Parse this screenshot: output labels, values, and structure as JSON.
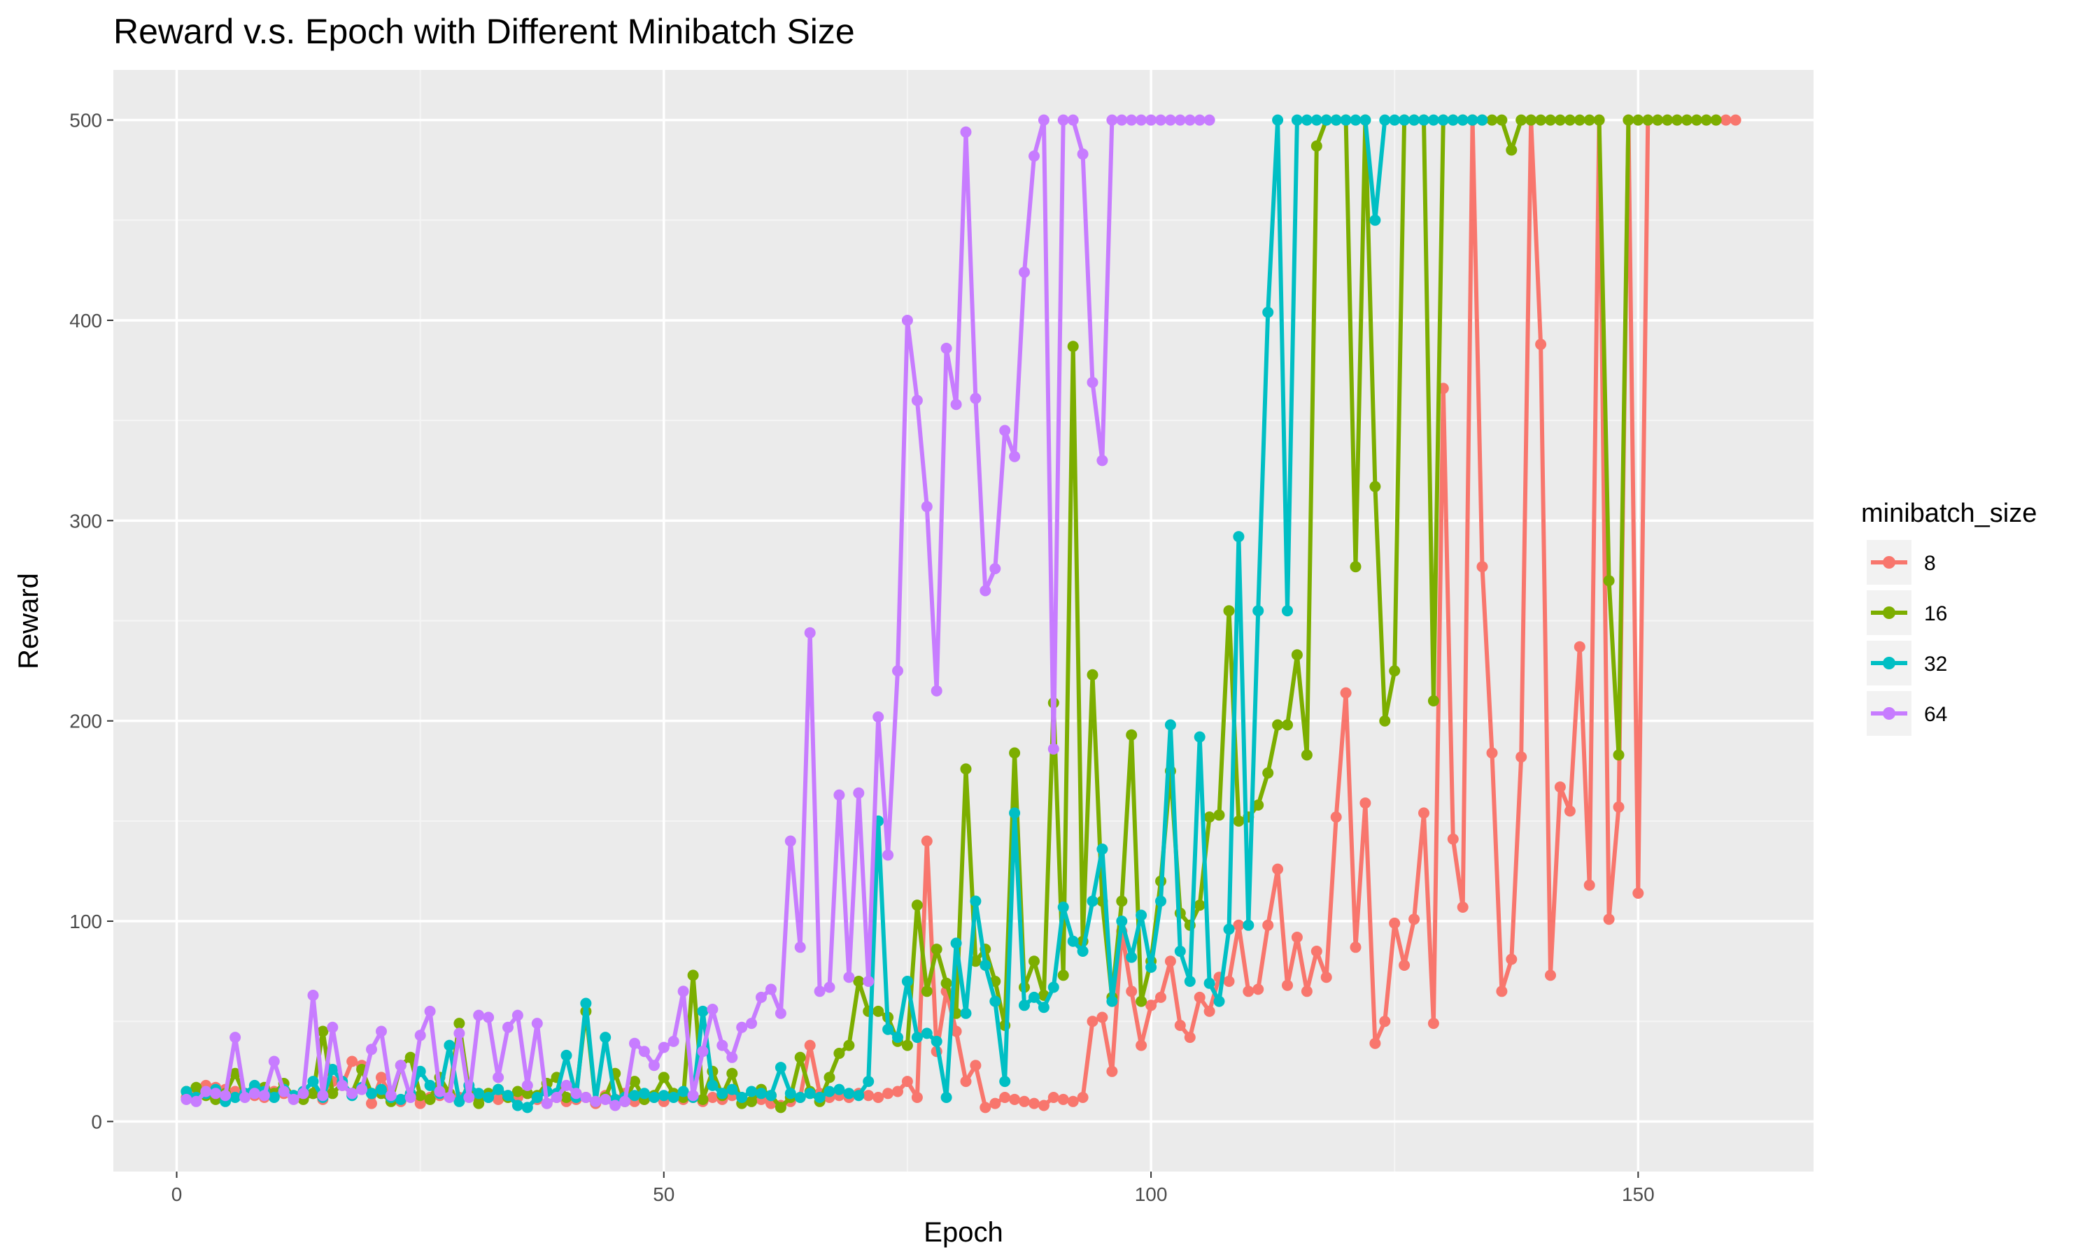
{
  "chart_data": {
    "type": "line",
    "title": "Reward v.s. Epoch with Different Minibatch Size",
    "xlabel": "Epoch",
    "ylabel": "Reward",
    "xlim": [
      -6.5,
      168
    ],
    "ylim": [
      -25,
      525
    ],
    "xticks": [
      0,
      50,
      100,
      150
    ],
    "yticks": [
      0,
      100,
      200,
      300,
      400,
      500
    ],
    "grid": true,
    "legend": {
      "title": "minibatch_size",
      "position": "right"
    },
    "series": [
      {
        "name": "8",
        "color": "#F8766D",
        "x": [
          1,
          2,
          3,
          4,
          5,
          6,
          7,
          8,
          9,
          10,
          11,
          12,
          13,
          14,
          15,
          16,
          17,
          18,
          19,
          20,
          21,
          22,
          23,
          24,
          25,
          26,
          27,
          28,
          29,
          30,
          31,
          32,
          33,
          34,
          35,
          36,
          37,
          38,
          39,
          40,
          41,
          42,
          43,
          44,
          45,
          46,
          47,
          48,
          49,
          50,
          51,
          52,
          53,
          54,
          55,
          56,
          57,
          58,
          59,
          60,
          61,
          62,
          63,
          64,
          65,
          66,
          67,
          68,
          69,
          70,
          71,
          72,
          73,
          74,
          75,
          76,
          77,
          78,
          79,
          80,
          81,
          82,
          83,
          84,
          85,
          86,
          87,
          88,
          89,
          90,
          91,
          92,
          93,
          94,
          95,
          96,
          97,
          98,
          99,
          100,
          101,
          102,
          103,
          104,
          105,
          106,
          107,
          108,
          109,
          110,
          111,
          112,
          113,
          114,
          115,
          116,
          117,
          118,
          119,
          120,
          121,
          122,
          123,
          124,
          125,
          126,
          127,
          128,
          129,
          130,
          131,
          132,
          133,
          134,
          135,
          136,
          137,
          138,
          139,
          140,
          141,
          142,
          143,
          144,
          145,
          146,
          147,
          148,
          149,
          150,
          151,
          152,
          153,
          154,
          155,
          156,
          157,
          158,
          159,
          160
        ],
        "values": [
          12,
          14,
          18,
          17,
          16,
          15,
          14,
          13,
          12,
          15,
          14,
          13,
          12,
          14,
          11,
          20,
          18,
          30,
          28,
          9,
          22,
          12,
          10,
          14,
          9,
          12,
          13,
          14,
          12,
          15,
          13,
          12,
          11,
          13,
          12,
          14,
          11,
          9,
          12,
          10,
          11,
          12,
          9,
          13,
          11,
          14,
          10,
          11,
          12,
          10,
          13,
          11,
          12,
          10,
          12,
          11,
          13,
          12,
          10,
          11,
          9,
          8,
          10,
          12,
          38,
          14,
          12,
          13,
          12,
          14,
          13,
          12,
          14,
          15,
          20,
          12,
          140,
          35,
          65,
          45,
          20,
          28,
          7,
          9,
          12,
          11,
          10,
          9,
          8,
          12,
          11,
          10,
          12,
          50,
          52,
          25,
          95,
          65,
          38,
          58,
          62,
          80,
          48,
          42,
          62,
          55,
          72,
          70,
          98,
          65,
          66,
          98,
          126,
          68,
          92,
          65,
          85,
          72,
          152,
          214,
          87,
          159,
          39,
          50,
          99,
          78,
          101,
          154,
          49,
          366,
          141,
          107,
          500,
          277,
          184,
          65,
          81,
          182,
          500,
          388,
          73,
          167,
          155,
          237,
          118,
          500,
          101,
          157,
          500,
          114,
          500,
          500,
          500,
          500,
          500,
          500,
          500,
          500,
          500,
          500
        ]
      },
      {
        "name": "16",
        "color": "#7CAE00",
        "x": [
          1,
          2,
          3,
          4,
          5,
          6,
          7,
          8,
          9,
          10,
          11,
          12,
          13,
          14,
          15,
          16,
          17,
          18,
          19,
          20,
          21,
          22,
          23,
          24,
          25,
          26,
          27,
          28,
          29,
          30,
          31,
          32,
          33,
          34,
          35,
          36,
          37,
          38,
          39,
          40,
          41,
          42,
          43,
          44,
          45,
          46,
          47,
          48,
          49,
          50,
          51,
          52,
          53,
          54,
          55,
          56,
          57,
          58,
          59,
          60,
          61,
          62,
          63,
          64,
          65,
          66,
          67,
          68,
          69,
          70,
          71,
          72,
          73,
          74,
          75,
          76,
          77,
          78,
          79,
          80,
          81,
          82,
          83,
          84,
          85,
          86,
          87,
          88,
          89,
          90,
          91,
          92,
          93,
          94,
          95,
          96,
          97,
          98,
          99,
          100,
          101,
          102,
          103,
          104,
          105,
          106,
          107,
          108,
          109,
          110,
          111,
          112,
          113,
          114,
          115,
          116,
          117,
          118,
          119,
          120,
          121,
          122,
          123,
          124,
          125,
          126,
          127,
          128,
          129,
          130,
          131,
          132,
          133,
          134,
          135,
          136,
          137,
          138,
          139,
          140,
          141,
          142,
          143,
          144,
          145,
          146,
          147,
          148,
          149,
          150,
          151,
          152,
          153,
          154,
          155,
          156,
          157,
          158
        ],
        "values": [
          15,
          17,
          13,
          11,
          14,
          24,
          13,
          15,
          17,
          14,
          19,
          12,
          11,
          14,
          45,
          14,
          19,
          14,
          26,
          14,
          14,
          10,
          28,
          32,
          13,
          11,
          22,
          14,
          49,
          15,
          9,
          14,
          16,
          12,
          15,
          14,
          13,
          19,
          22,
          12,
          14,
          55,
          10,
          12,
          24,
          10,
          20,
          11,
          13,
          22,
          14,
          12,
          73,
          11,
          25,
          13,
          24,
          9,
          10,
          16,
          13,
          7,
          12,
          32,
          15,
          10,
          22,
          34,
          38,
          70,
          55,
          55,
          52,
          40,
          38,
          108,
          65,
          86,
          69,
          54,
          176,
          80,
          86,
          70,
          48,
          184,
          67,
          80,
          63,
          209,
          73,
          387,
          90,
          223,
          110,
          62,
          110,
          193,
          60,
          80,
          120,
          175,
          104,
          98,
          108,
          152,
          153,
          255,
          150,
          152,
          158,
          174,
          198,
          198,
          233,
          183,
          487,
          500,
          500,
          500,
          277,
          500,
          317,
          200,
          225,
          500,
          500,
          500,
          210,
          500,
          500,
          500,
          500,
          500,
          500,
          500,
          485,
          500,
          500,
          500,
          500,
          500,
          500,
          500,
          500,
          500,
          270,
          183,
          500,
          500,
          500,
          500,
          500,
          500,
          500,
          500,
          500,
          500
        ]
      },
      {
        "name": "32",
        "color": "#00BFC4",
        "x": [
          1,
          2,
          3,
          4,
          5,
          6,
          7,
          8,
          9,
          10,
          11,
          12,
          13,
          14,
          15,
          16,
          17,
          18,
          19,
          20,
          21,
          22,
          23,
          24,
          25,
          26,
          27,
          28,
          29,
          30,
          31,
          32,
          33,
          34,
          35,
          36,
          37,
          38,
          39,
          40,
          41,
          42,
          43,
          44,
          45,
          46,
          47,
          48,
          49,
          50,
          51,
          52,
          53,
          54,
          55,
          56,
          57,
          58,
          59,
          60,
          61,
          62,
          63,
          64,
          65,
          66,
          67,
          68,
          69,
          70,
          71,
          72,
          73,
          74,
          75,
          76,
          77,
          78,
          79,
          80,
          81,
          82,
          83,
          84,
          85,
          86,
          87,
          88,
          89,
          90,
          91,
          92,
          93,
          94,
          95,
          96,
          97,
          98,
          99,
          100,
          101,
          102,
          103,
          104,
          105,
          106,
          107,
          108,
          109,
          110,
          111,
          112,
          113,
          114,
          115,
          116,
          117,
          118,
          119,
          120,
          121,
          122,
          123,
          124,
          125,
          126,
          127,
          128,
          129,
          130,
          131,
          132,
          133,
          134
        ],
        "values": [
          15,
          12,
          14,
          16,
          10,
          12,
          14,
          18,
          15,
          12,
          16,
          13,
          15,
          20,
          12,
          26,
          20,
          13,
          17,
          14,
          16,
          12,
          11,
          14,
          25,
          18,
          14,
          38,
          10,
          18,
          14,
          12,
          16,
          13,
          8,
          7,
          12,
          15,
          14,
          33,
          12,
          59,
          10,
          42,
          11,
          12,
          13,
          14,
          12,
          13,
          12,
          15,
          12,
          55,
          18,
          14,
          16,
          12,
          15,
          14,
          13,
          27,
          14,
          12,
          14,
          12,
          15,
          16,
          14,
          13,
          20,
          150,
          46,
          42,
          70,
          42,
          44,
          40,
          12,
          89,
          54,
          110,
          78,
          60,
          20,
          154,
          58,
          62,
          57,
          67,
          107,
          90,
          85,
          110,
          136,
          60,
          100,
          82,
          103,
          77,
          110,
          198,
          85,
          70,
          192,
          69,
          60,
          96,
          292,
          98,
          255,
          404,
          500,
          255,
          500,
          500,
          500,
          500,
          500,
          500,
          500,
          500,
          450,
          500,
          500,
          500,
          500,
          500,
          500,
          500,
          500,
          500,
          500,
          500
        ]
      },
      {
        "name": "64",
        "color": "#C77CFF",
        "x": [
          1,
          2,
          3,
          4,
          5,
          6,
          7,
          8,
          9,
          10,
          11,
          12,
          13,
          14,
          15,
          16,
          17,
          18,
          19,
          20,
          21,
          22,
          23,
          24,
          25,
          26,
          27,
          28,
          29,
          30,
          31,
          32,
          33,
          34,
          35,
          36,
          37,
          38,
          39,
          40,
          41,
          42,
          43,
          44,
          45,
          46,
          47,
          48,
          49,
          50,
          51,
          52,
          53,
          54,
          55,
          56,
          57,
          58,
          59,
          60,
          61,
          62,
          63,
          64,
          65,
          66,
          67,
          68,
          69,
          70,
          71,
          72,
          73,
          74,
          75,
          76,
          77,
          78,
          79,
          80,
          81,
          82,
          83,
          84,
          85,
          86,
          87,
          88,
          89,
          90,
          91,
          92,
          93,
          94,
          95,
          96,
          97,
          98,
          99,
          100,
          101,
          102,
          103,
          104,
          105,
          106
        ],
        "values": [
          11,
          10,
          15,
          14,
          13,
          42,
          12,
          14,
          13,
          30,
          15,
          11,
          14,
          63,
          13,
          47,
          18,
          14,
          16,
          36,
          45,
          13,
          28,
          12,
          43,
          55,
          15,
          12,
          44,
          12,
          53,
          52,
          22,
          47,
          53,
          18,
          49,
          9,
          12,
          18,
          14,
          12,
          10,
          11,
          8,
          10,
          39,
          35,
          28,
          37,
          40,
          65,
          13,
          35,
          56,
          38,
          32,
          47,
          49,
          62,
          66,
          54,
          140,
          87,
          244,
          65,
          67,
          163,
          72,
          164,
          70,
          202,
          133,
          225,
          400,
          360,
          307,
          215,
          386,
          358,
          494,
          361,
          265,
          276,
          345,
          332,
          424,
          482,
          500,
          186,
          500,
          500,
          483,
          369,
          330,
          500,
          500,
          500,
          500,
          500,
          500,
          500,
          500,
          500,
          500,
          500
        ]
      }
    ]
  }
}
